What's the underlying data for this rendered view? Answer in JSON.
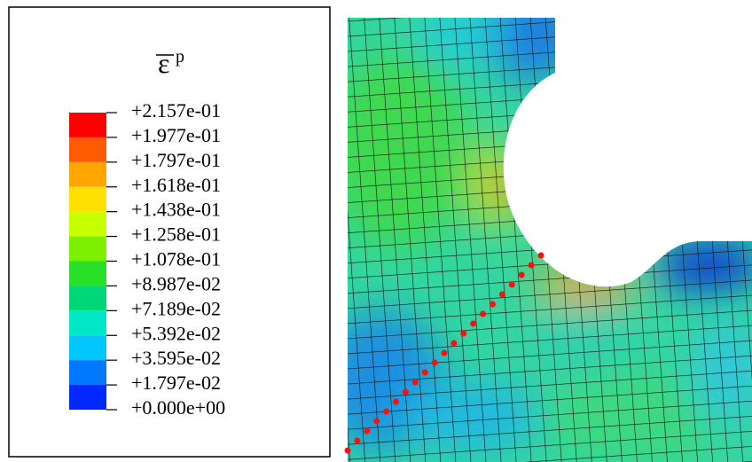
{
  "legend": {
    "title": "ε",
    "superscript": "p",
    "labels": [
      "+2.157e-01",
      "+1.977e-01",
      "+1.797e-01",
      "+1.618e-01",
      "+1.438e-01",
      "+1.258e-01",
      "+1.078e-01",
      "+8.987e-02",
      "+7.189e-02",
      "+5.392e-02",
      "+3.595e-02",
      "+1.797e-02",
      "+0.000e+00"
    ]
  }
}
